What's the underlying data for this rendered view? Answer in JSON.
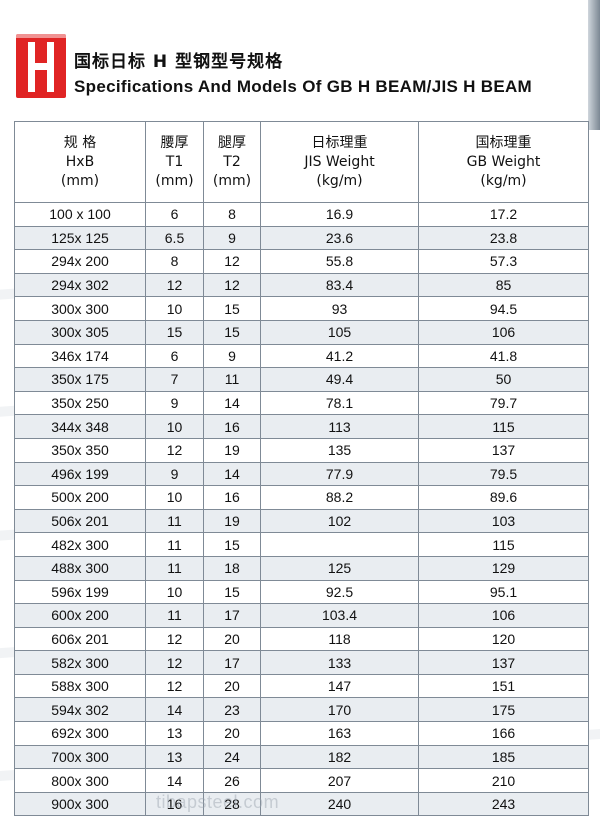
{
  "header": {
    "title_cn": "国标日标 H 型钢型号规格",
    "title_en": "Specifications And Models Of GB H BEAM/JIS H BEAM"
  },
  "columns": [
    {
      "line1": "规 格",
      "line2": "HxB",
      "line3": "(mm)"
    },
    {
      "line1": "腰厚",
      "line2": "T1",
      "line3": "(mm)"
    },
    {
      "line1": "腿厚",
      "line2": "T2",
      "line3": "(mm)"
    },
    {
      "line1": "日标理重",
      "line2": "JIS Weight",
      "line3": "(kg/m)"
    },
    {
      "line1": "国标理重",
      "line2": "GB Weight",
      "line3": "(kg/m)"
    }
  ],
  "rows": [
    [
      "100 x 100",
      "6",
      "8",
      "16.9",
      "17.2"
    ],
    [
      "125x 125",
      "6.5",
      "9",
      "23.6",
      "23.8"
    ],
    [
      "294x 200",
      "8",
      "12",
      "55.8",
      "57.3"
    ],
    [
      "294x 302",
      "12",
      "12",
      "83.4",
      "85"
    ],
    [
      "300x 300",
      "10",
      "15",
      "93",
      "94.5"
    ],
    [
      "300x 305",
      "15",
      "15",
      "105",
      "106"
    ],
    [
      "346x 174",
      "6",
      "9",
      "41.2",
      "41.8"
    ],
    [
      "350x 175",
      "7",
      "11",
      "49.4",
      "50"
    ],
    [
      "350x 250",
      "9",
      "14",
      "78.1",
      "79.7"
    ],
    [
      "344x 348",
      "10",
      "16",
      "113",
      "115"
    ],
    [
      "350x 350",
      "12",
      "19",
      "135",
      "137"
    ],
    [
      "496x 199",
      "9",
      "14",
      "77.9",
      "79.5"
    ],
    [
      "500x 200",
      "10",
      "16",
      "88.2",
      "89.6"
    ],
    [
      "506x 201",
      "11",
      "19",
      "102",
      "103"
    ],
    [
      "482x 300",
      "11",
      "15",
      "",
      "115"
    ],
    [
      "488x 300",
      "11",
      "18",
      "125",
      "129"
    ],
    [
      "596x 199",
      "10",
      "15",
      "92.5",
      "95.1"
    ],
    [
      "600x 200",
      "11",
      "17",
      "103.4",
      "106"
    ],
    [
      "606x 201",
      "12",
      "20",
      "118",
      "120"
    ],
    [
      "582x 300",
      "12",
      "17",
      "133",
      "137"
    ],
    [
      "588x 300",
      "12",
      "20",
      "147",
      "151"
    ],
    [
      "594x 302",
      "14",
      "23",
      "170",
      "175"
    ],
    [
      "692x 300",
      "13",
      "20",
      "163",
      "166"
    ],
    [
      "700x 300",
      "13",
      "24",
      "182",
      "185"
    ],
    [
      "800x 300",
      "14",
      "26",
      "207",
      "210"
    ],
    [
      "900x 300",
      "16",
      "28",
      "240",
      "243"
    ]
  ],
  "watermark": "tibapsteel.com",
  "colors": {
    "logo": "#e02424",
    "row_alt": "#e9edf1",
    "border": "#7f8a96"
  },
  "icons": {
    "logo": "h-logo-icon"
  }
}
